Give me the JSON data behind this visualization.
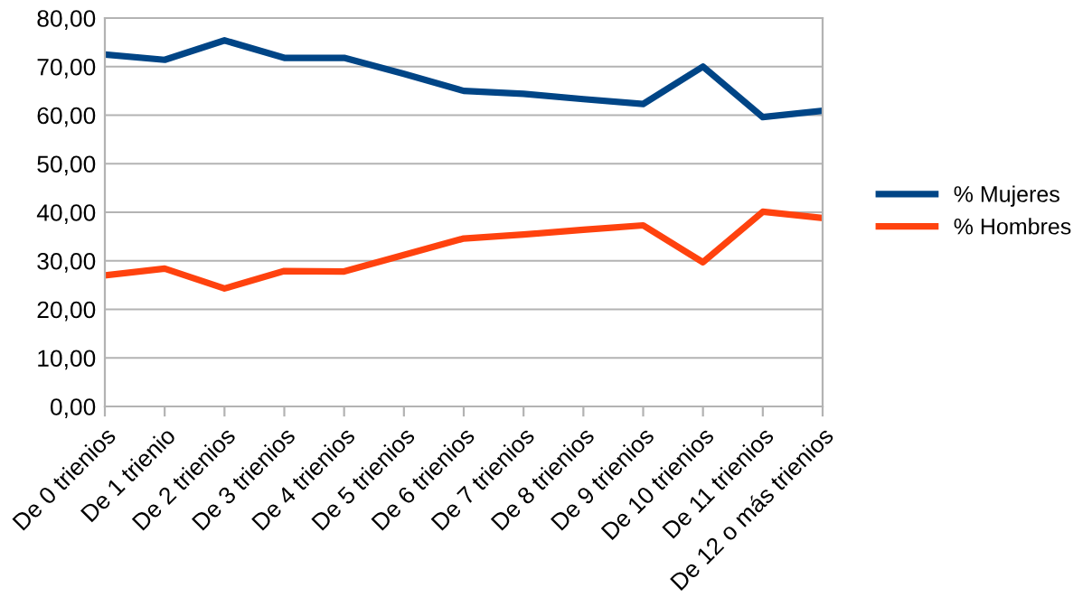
{
  "chart_data": {
    "type": "line",
    "categories": [
      "De 0 trienios",
      "De 1 trienio",
      "De 2 trienios",
      "De 3 trienios",
      "De 4 trienios",
      "De 5 trienios",
      "De 6 trienios",
      "De 7 trienios",
      "De 8 trienios",
      "De 9 trienios",
      "De 10 trienios",
      "De 11 trienios",
      "De 12 o más trienios"
    ],
    "series": [
      {
        "name": "% Mujeres",
        "color": "#004586",
        "values": [
          72.5,
          71.4,
          75.4,
          71.8,
          71.8,
          68.5,
          65.0,
          64.4,
          63.3,
          62.3,
          70.0,
          59.6,
          60.9
        ]
      },
      {
        "name": "% Hombres",
        "color": "#ff420e",
        "values": [
          27.0,
          28.4,
          24.3,
          27.9,
          27.8,
          31.2,
          34.6,
          35.4,
          36.4,
          37.3,
          29.7,
          40.1,
          38.8
        ]
      }
    ],
    "ylim": [
      0,
      80
    ],
    "yticks": [
      {
        "value": 0,
        "label": "0,00"
      },
      {
        "value": 10,
        "label": "10,00"
      },
      {
        "value": 20,
        "label": "20,00"
      },
      {
        "value": 30,
        "label": "30,00"
      },
      {
        "value": 40,
        "label": "40,00"
      },
      {
        "value": 50,
        "label": "50,00"
      },
      {
        "value": 60,
        "label": "60,00"
      },
      {
        "value": 70,
        "label": "70,00"
      },
      {
        "value": 80,
        "label": "80,00"
      }
    ],
    "grid": "y",
    "legend": "right",
    "marker": "none",
    "line_style": "solid"
  }
}
